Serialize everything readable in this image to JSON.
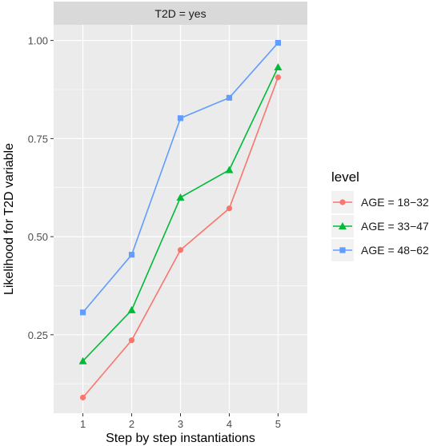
{
  "chart_data": {
    "type": "line",
    "facet_label": "T2D = yes",
    "xlabel": "Step by step instantiations",
    "ylabel": "Likelihood for T2D variable",
    "x": [
      1,
      2,
      3,
      4,
      5
    ],
    "x_tick_labels": [
      "1",
      "2",
      "3",
      "4",
      "5"
    ],
    "y_ticks": [
      0.25,
      0.5,
      0.75,
      1.0
    ],
    "y_tick_labels": [
      "0.25",
      "0.50",
      "0.75",
      "1.00"
    ],
    "xlim": [
      0.4,
      5.6
    ],
    "ylim": [
      0.05,
      1.04
    ],
    "grid": true,
    "legend": {
      "title": "level",
      "placement": "right"
    },
    "series": [
      {
        "name": "AGE = 18−32",
        "color": "#F8766D",
        "marker": "circle",
        "values": [
          0.09,
          0.236,
          0.466,
          0.572,
          0.906
        ]
      },
      {
        "name": "AGE = 33−47",
        "color": "#00BA38",
        "marker": "triangle",
        "values": [
          0.183,
          0.313,
          0.6,
          0.67,
          0.932
        ]
      },
      {
        "name": "AGE = 48−62",
        "color": "#619CFF",
        "marker": "square",
        "values": [
          0.307,
          0.454,
          0.802,
          0.854,
          0.994
        ]
      }
    ]
  }
}
